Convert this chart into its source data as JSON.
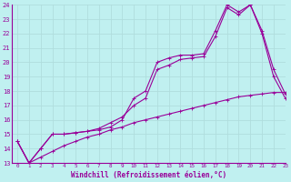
{
  "xlabel": "Windchill (Refroidissement éolien,°C)",
  "line1_x": [
    0,
    1,
    2,
    3,
    4,
    5,
    6,
    7,
    8,
    9,
    10,
    11,
    12,
    13,
    14,
    15,
    16,
    17,
    18,
    19,
    20,
    21,
    22,
    23
  ],
  "line1_y": [
    14.5,
    13.0,
    14.0,
    15.0,
    15.0,
    15.1,
    15.2,
    15.3,
    15.5,
    16.0,
    17.5,
    18.0,
    20.0,
    20.3,
    20.5,
    20.5,
    20.6,
    22.2,
    24.0,
    23.5,
    24.0,
    22.2,
    19.5,
    17.8
  ],
  "line2_x": [
    0,
    1,
    2,
    3,
    4,
    5,
    6,
    7,
    8,
    9,
    10,
    11,
    12,
    13,
    14,
    15,
    16,
    17,
    18,
    19,
    20,
    21,
    22,
    23
  ],
  "line2_y": [
    14.5,
    13.0,
    14.0,
    15.0,
    15.0,
    15.1,
    15.2,
    15.4,
    15.8,
    16.2,
    17.0,
    17.5,
    19.5,
    19.8,
    20.2,
    20.3,
    20.4,
    21.8,
    23.8,
    23.3,
    24.0,
    22.0,
    19.0,
    17.5
  ],
  "line3_x": [
    0,
    1,
    2,
    3,
    4,
    5,
    6,
    7,
    8,
    9,
    10,
    11,
    12,
    13,
    14,
    15,
    16,
    17,
    18,
    19,
    20,
    21,
    22,
    23
  ],
  "line3_y": [
    14.5,
    13.0,
    13.4,
    13.8,
    14.2,
    14.5,
    14.8,
    15.0,
    15.3,
    15.5,
    15.8,
    16.0,
    16.2,
    16.4,
    16.6,
    16.8,
    17.0,
    17.2,
    17.4,
    17.6,
    17.7,
    17.8,
    17.9,
    17.9
  ],
  "line_color": "#990099",
  "bg_color": "#c0f0f0",
  "grid_color": "#aadddd",
  "xlim": [
    -0.5,
    23
  ],
  "ylim": [
    13,
    24
  ],
  "yticks": [
    13,
    14,
    15,
    16,
    17,
    18,
    19,
    20,
    21,
    22,
    23,
    24
  ],
  "xticks": [
    0,
    1,
    2,
    3,
    4,
    5,
    6,
    7,
    8,
    9,
    10,
    11,
    12,
    13,
    14,
    15,
    16,
    17,
    18,
    19,
    20,
    21,
    22,
    23
  ]
}
